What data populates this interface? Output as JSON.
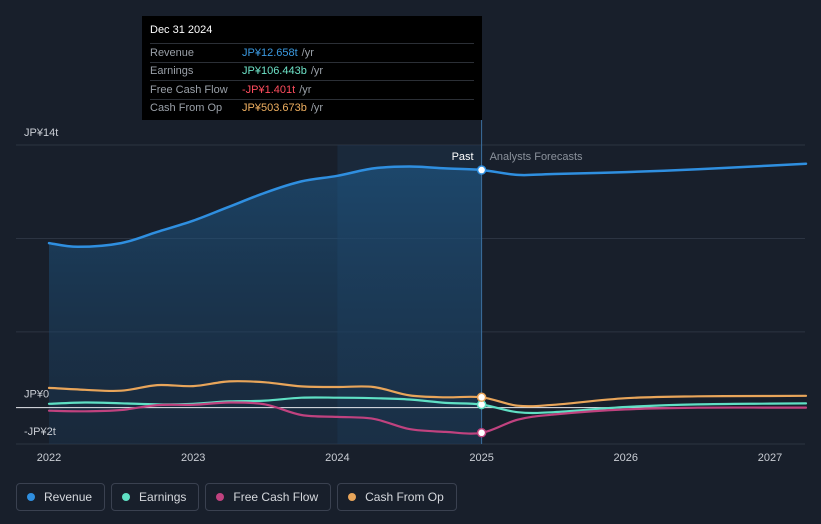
{
  "tooltip": {
    "date": "Dec 31 2024",
    "rows": [
      {
        "label": "Revenue",
        "value": "JP¥12.658t",
        "unit": "/yr",
        "color": "#3b9ae1"
      },
      {
        "label": "Earnings",
        "value": "JP¥106.443b",
        "unit": "/yr",
        "color": "#6ee3c8"
      },
      {
        "label": "Free Cash Flow",
        "value": "-JP¥1.401t",
        "unit": "/yr",
        "color": "#ff4d5e"
      },
      {
        "label": "Cash From Op",
        "value": "JP¥503.673b",
        "unit": "/yr",
        "color": "#f0b060"
      }
    ]
  },
  "labels": {
    "past": "Past",
    "forecast": "Analysts Forecasts"
  },
  "legend": [
    {
      "label": "Revenue",
      "color": "#2f8fe0"
    },
    {
      "label": "Earnings",
      "color": "#5fe0c4"
    },
    {
      "label": "Free Cash Flow",
      "color": "#c0427f"
    },
    {
      "label": "Cash From Op",
      "color": "#e8a55a"
    }
  ],
  "chart_data": {
    "type": "line",
    "title": "",
    "xlabel": "",
    "ylabel": "",
    "unit": "JP¥ trillion",
    "xlim": [
      2022.0,
      2027.25
    ],
    "ylim": [
      -2,
      14
    ],
    "y_ticks": [
      {
        "value": 14,
        "label": "JP¥14t"
      },
      {
        "value": 0,
        "label": "JP¥0"
      },
      {
        "value": -2,
        "label": "-JP¥2t"
      }
    ],
    "x_ticks": [
      {
        "value": 2022,
        "label": "2022"
      },
      {
        "value": 2023,
        "label": "2023"
      },
      {
        "value": 2024,
        "label": "2024"
      },
      {
        "value": 2025,
        "label": "2025"
      },
      {
        "value": 2026,
        "label": "2026"
      },
      {
        "value": 2027,
        "label": "2027"
      }
    ],
    "past_end": 2025.0,
    "highlight_start": 2024.0,
    "series": [
      {
        "name": "Revenue",
        "color": "#2f8fe0",
        "area": true,
        "x": [
          2022.0,
          2022.2,
          2022.5,
          2022.75,
          2023.0,
          2023.25,
          2023.5,
          2023.75,
          2024.0,
          2024.25,
          2024.5,
          2024.75,
          2025.0,
          2025.25,
          2025.5,
          2026.0,
          2026.5,
          2027.0,
          2027.25
        ],
        "y": [
          8.75,
          8.55,
          8.75,
          9.35,
          9.95,
          10.7,
          11.45,
          12.05,
          12.35,
          12.75,
          12.85,
          12.75,
          12.66,
          12.4,
          12.45,
          12.55,
          12.7,
          12.9,
          13.0
        ]
      },
      {
        "name": "Earnings",
        "color": "#5fe0c4",
        "area": false,
        "x": [
          2022.0,
          2022.25,
          2022.5,
          2022.75,
          2023.0,
          2023.25,
          2023.5,
          2023.75,
          2024.0,
          2024.25,
          2024.5,
          2024.75,
          2025.0,
          2025.25,
          2025.5,
          2026.0,
          2026.5,
          2027.0,
          2027.25
        ],
        "y": [
          0.15,
          0.22,
          0.18,
          0.12,
          0.15,
          0.28,
          0.32,
          0.48,
          0.48,
          0.45,
          0.38,
          0.2,
          0.11,
          -0.3,
          -0.3,
          -0.02,
          0.12,
          0.16,
          0.17
        ]
      },
      {
        "name": "Free Cash Flow",
        "color": "#c0427f",
        "area": false,
        "x": [
          2022.0,
          2022.25,
          2022.5,
          2022.75,
          2023.0,
          2023.25,
          2023.5,
          2023.75,
          2024.0,
          2024.25,
          2024.5,
          2024.75,
          2025.0,
          2025.25,
          2025.5,
          2026.0,
          2026.5,
          2027.0,
          2027.25
        ],
        "y": [
          -0.22,
          -0.25,
          -0.18,
          0.08,
          0.1,
          0.22,
          0.12,
          -0.45,
          -0.55,
          -0.65,
          -1.2,
          -1.35,
          -1.4,
          -0.7,
          -0.42,
          -0.15,
          -0.06,
          -0.05,
          -0.05
        ]
      },
      {
        "name": "Cash From Op",
        "color": "#e8a55a",
        "area": false,
        "x": [
          2022.0,
          2022.25,
          2022.5,
          2022.75,
          2023.0,
          2023.25,
          2023.5,
          2023.75,
          2024.0,
          2024.25,
          2024.5,
          2024.75,
          2025.0,
          2025.25,
          2025.5,
          2026.0,
          2026.5,
          2027.0,
          2027.25
        ],
        "y": [
          1.0,
          0.9,
          0.85,
          1.15,
          1.1,
          1.35,
          1.3,
          1.08,
          1.05,
          1.05,
          0.6,
          0.5,
          0.5,
          0.05,
          0.1,
          0.45,
          0.55,
          0.57,
          0.58
        ]
      }
    ],
    "markers": [
      {
        "series": "Revenue",
        "x": 2025.0,
        "y": 12.66
      },
      {
        "series": "Earnings",
        "x": 2025.0,
        "y": 0.11
      },
      {
        "series": "Free Cash Flow",
        "x": 2025.0,
        "y": -1.4
      },
      {
        "series": "Cash From Op",
        "x": 2025.0,
        "y": 0.5
      }
    ]
  }
}
